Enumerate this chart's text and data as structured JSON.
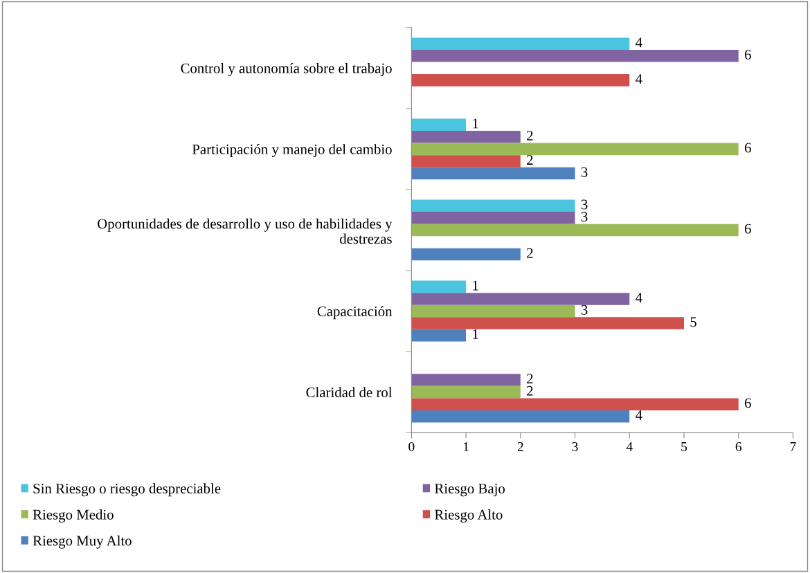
{
  "chart_data": {
    "type": "bar",
    "orientation": "horizontal",
    "categories": [
      "Control y autonomía sobre el trabajo",
      "Participación y manejo del cambio",
      "Oportunidades de desarrollo y uso de habilidades y\ndestrezas",
      "Capacitación",
      "Claridad de rol"
    ],
    "series": [
      {
        "name": "Sin Riesgo o riesgo despreciable",
        "color": "#4bc4e0",
        "values": [
          4,
          1,
          3,
          1,
          null
        ]
      },
      {
        "name": "Riesgo Bajo",
        "color": "#8064a2",
        "values": [
          6,
          2,
          3,
          4,
          2
        ]
      },
      {
        "name": "Riesgo Medio",
        "color": "#9bbb59",
        "values": [
          null,
          6,
          6,
          3,
          2
        ]
      },
      {
        "name": "Riesgo Alto",
        "color": "#d0504d",
        "values": [
          4,
          2,
          null,
          5,
          6
        ]
      },
      {
        "name": "Riesgo Muy Alto",
        "color": "#4f81bd",
        "values": [
          null,
          3,
          2,
          1,
          4
        ]
      }
    ],
    "xlim": [
      0,
      7
    ],
    "xticks": [
      0,
      1,
      2,
      3,
      4,
      5,
      6,
      7
    ],
    "data_labels": true,
    "grid": false,
    "legend": "bottom"
  }
}
